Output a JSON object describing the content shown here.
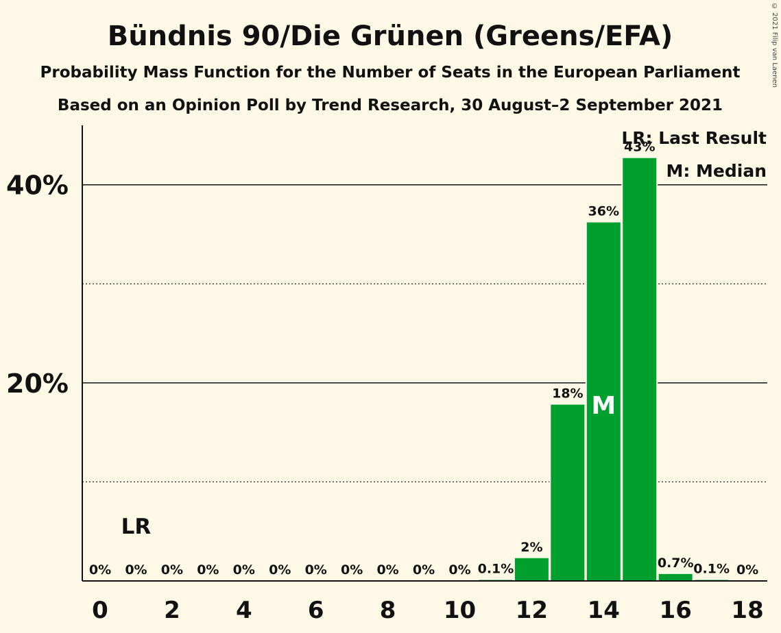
{
  "chart_data": {
    "type": "bar",
    "title": "Bündnis 90/Die Grünen (Greens/EFA)",
    "subtitle": "Probability Mass Function for the Number of Seats in the European Parliament",
    "subtitle2": "Based on an Opinion Poll by Trend Research, 30 August–2 September 2021",
    "xlabel": "",
    "ylabel": "",
    "categories": [
      0,
      1,
      2,
      3,
      4,
      5,
      6,
      7,
      8,
      9,
      10,
      11,
      12,
      13,
      14,
      15,
      16,
      17,
      18
    ],
    "values": [
      0,
      0,
      0,
      0,
      0,
      0,
      0,
      0,
      0,
      0,
      0,
      0.1,
      2.3,
      17.8,
      36.2,
      42.7,
      0.7,
      0.1,
      0
    ],
    "data_labels": [
      "0%",
      "0%",
      "0%",
      "0%",
      "0%",
      "0%",
      "0%",
      "0%",
      "0%",
      "0%",
      "0%",
      "0.1%",
      "2%",
      "18%",
      "36%",
      "43%",
      "0.7%",
      "0.1%",
      "0%"
    ],
    "x_tick_labels": [
      "0",
      "2",
      "4",
      "6",
      "8",
      "10",
      "12",
      "14",
      "16",
      "18"
    ],
    "x_ticks": [
      0,
      2,
      4,
      6,
      8,
      10,
      12,
      14,
      16,
      18
    ],
    "y_tick_labels": [
      "20%",
      "40%"
    ],
    "y_ticks": [
      20,
      40
    ],
    "y_minor_gridlines": [
      10,
      30
    ],
    "ylim": [
      0,
      46
    ],
    "last_result_seat": 1,
    "last_result_marker": "LR",
    "median_seat": 14,
    "median_marker": "M",
    "legend": {
      "position": "top-right",
      "entries": [
        "LR: Last Result",
        "M: Median"
      ]
    },
    "bar_color": "#00a02e",
    "background_color": "#fef9e6",
    "text_color": "#111111"
  },
  "copyright": "© 2021 Filip van Laenen"
}
